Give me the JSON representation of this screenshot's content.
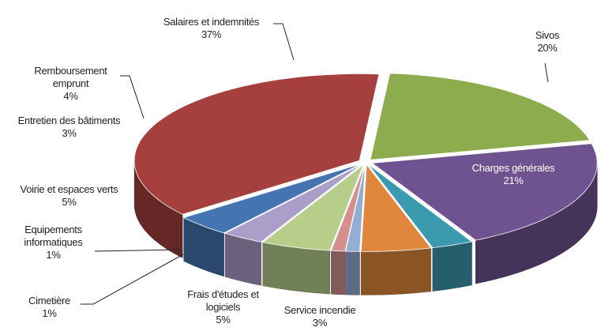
{
  "chart_data": {
    "type": "pie3d",
    "categories": [
      "Sivos",
      "Charges générales",
      "Service incendie",
      "Frais d'études et logiciels",
      "Cimetière",
      "Equipements informatiques",
      "Voirie et espaces verts",
      "Entretien des bâtiments",
      "Remboursement emprunt",
      "Salaires et indemnités"
    ],
    "values": [
      20,
      21,
      3,
      5,
      1,
      1,
      5,
      3,
      4,
      37
    ],
    "value_labels": [
      "20%",
      "21%",
      "3%",
      "5%",
      "1%",
      "1%",
      "5%",
      "3%",
      "4%",
      "37%"
    ],
    "colors": [
      "#8cac4e",
      "#6f5390",
      "#3b9ab0",
      "#e0873b",
      "#93add5",
      "#d58f8f",
      "#b7ce8b",
      "#ab9ec8",
      "#4474b2",
      "#a5403f"
    ]
  }
}
